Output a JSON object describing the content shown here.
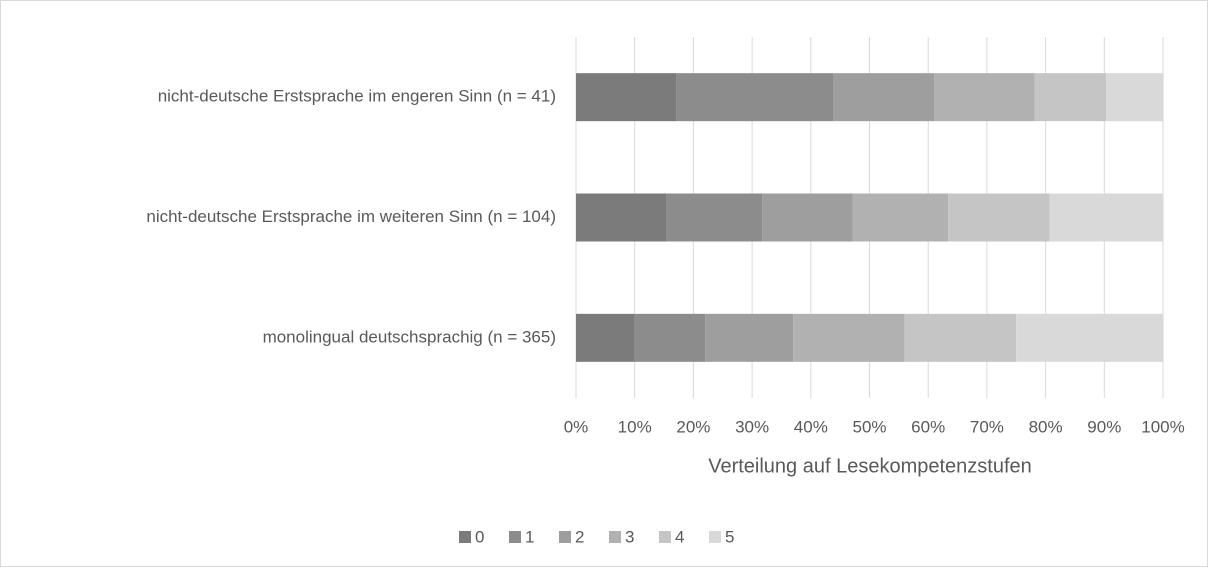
{
  "chart_data": {
    "type": "stacked_barh",
    "categories": [
      "nicht-deutsche Erstsprache im engeren  Sinn (n = 41)",
      "nicht-deutsche Erstsprache im weiteren Sinn (n = 104)",
      "monolingual deutschsprachig (n = 365)"
    ],
    "series": [
      {
        "name": "0",
        "color": "#7b7b7b",
        "values": [
          17.1,
          15.4,
          10
        ]
      },
      {
        "name": "1",
        "color": "#8c8c8c",
        "values": [
          26.8,
          16.3,
          12
        ]
      },
      {
        "name": "2",
        "color": "#9e9e9e",
        "values": [
          17.1,
          15.4,
          15
        ]
      },
      {
        "name": "3",
        "color": "#b1b1b1",
        "values": [
          17.1,
          16.3,
          19
        ]
      },
      {
        "name": "4",
        "color": "#c5c5c5",
        "values": [
          12.2,
          17.3,
          19
        ]
      },
      {
        "name": "5",
        "color": "#d9d9d9",
        "values": [
          9.8,
          19.2,
          25
        ]
      }
    ],
    "xlabel": "Verteilung auf Lesekompetenzstufen",
    "xlim": [
      0,
      100
    ],
    "xticks": [
      {
        "value": 0,
        "label": "0%"
      },
      {
        "value": 10,
        "label": "10%"
      },
      {
        "value": 20,
        "label": "20%"
      },
      {
        "value": 30,
        "label": "30%"
      },
      {
        "value": 40,
        "label": "40%"
      },
      {
        "value": 50,
        "label": "50%"
      },
      {
        "value": 60,
        "label": "60%"
      },
      {
        "value": 70,
        "label": "70%"
      },
      {
        "value": 80,
        "label": "80%"
      },
      {
        "value": 90,
        "label": "90%"
      },
      {
        "value": 100,
        "label": "100%"
      }
    ],
    "grid": true,
    "legend": "bottom"
  }
}
